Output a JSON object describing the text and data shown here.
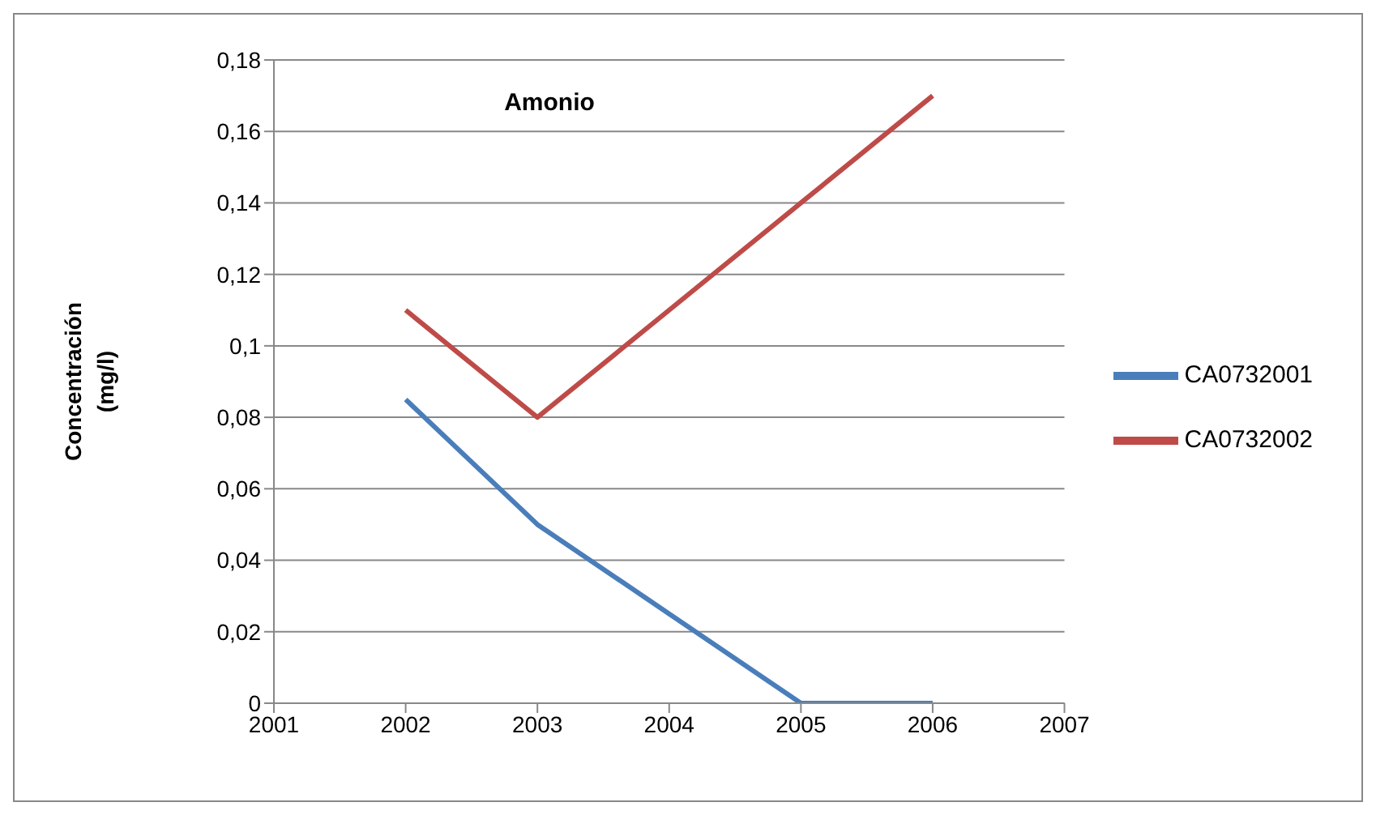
{
  "chart_data": {
    "type": "line",
    "title": "Amonio",
    "ylabel": "Concentración (mg/l)",
    "x": [
      2002,
      2003,
      2004,
      2005,
      2006
    ],
    "series": [
      {
        "name": "CA0732001",
        "color": "#4a7ebb",
        "values": [
          0.085,
          0.05,
          0.025,
          0,
          0
        ]
      },
      {
        "name": "CA0732002",
        "color": "#be4b48",
        "values": [
          0.11,
          0.08,
          0.11,
          0.14,
          0.17
        ]
      }
    ],
    "xlim": [
      2001,
      2007
    ],
    "xticks": [
      2001,
      2002,
      2003,
      2004,
      2005,
      2006,
      2007
    ],
    "ylim": [
      0,
      0.18
    ],
    "yticks": [
      {
        "value": 0,
        "label": "0"
      },
      {
        "value": 0.02,
        "label": "0,02"
      },
      {
        "value": 0.04,
        "label": "0,04"
      },
      {
        "value": 0.06,
        "label": "0,06"
      },
      {
        "value": 0.08,
        "label": "0,08"
      },
      {
        "value": 0.1,
        "label": "0,1"
      },
      {
        "value": 0.12,
        "label": "0,12"
      },
      {
        "value": 0.14,
        "label": "0,14"
      },
      {
        "value": 0.16,
        "label": "0,16"
      },
      {
        "value": 0.18,
        "label": "0,18"
      }
    ],
    "grid": "y",
    "legend": "right",
    "marker": "none",
    "line_style": "solid"
  }
}
